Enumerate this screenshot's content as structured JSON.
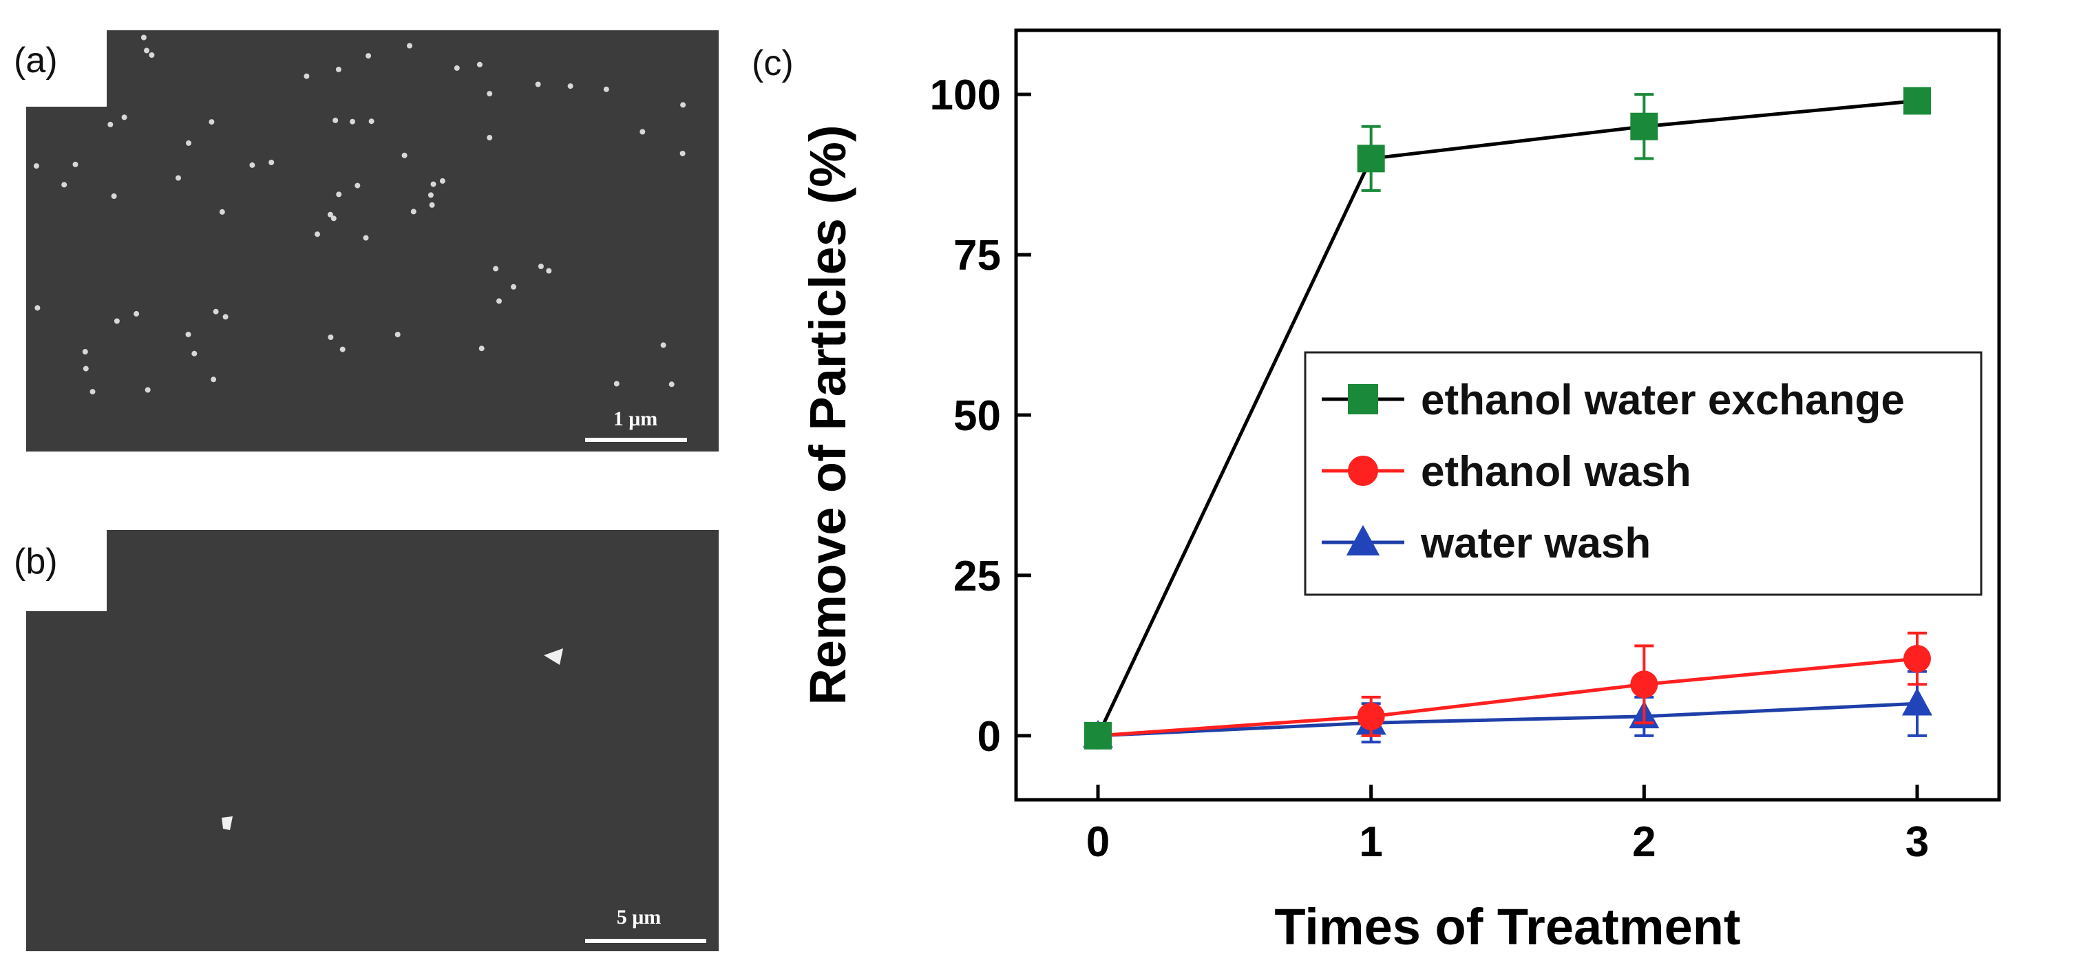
{
  "panels": {
    "a": {
      "label": "(a)",
      "scale_bar": "1 μm"
    },
    "b": {
      "label": "(b)",
      "scale_bar": "5 μm"
    },
    "c": {
      "label": "(c)"
    }
  },
  "chart_data": {
    "type": "line",
    "xlabel": "Times of Treatment",
    "ylabel": "Remove of Particles (%)",
    "x": [
      0,
      1,
      2,
      3
    ],
    "xlim": [
      -0.3,
      3.3
    ],
    "ylim": [
      -10,
      110
    ],
    "xticks": [
      "0",
      "1",
      "2",
      "3"
    ],
    "yticks": [
      "0",
      "25",
      "50",
      "75",
      "100"
    ],
    "ytick_values": [
      0,
      25,
      50,
      75,
      100
    ],
    "legend_position": "center-right",
    "series": [
      {
        "name": "ethanol water exchange",
        "values": [
          0,
          90,
          95,
          99
        ],
        "errors": [
          1,
          5,
          5,
          1
        ],
        "marker": "square",
        "marker_color": "#1a8a3a",
        "line_color": "#000000"
      },
      {
        "name": "ethanol wash",
        "values": [
          0,
          3,
          8,
          12
        ],
        "errors": [
          1,
          3,
          6,
          4
        ],
        "marker": "circle",
        "marker_color": "#ff2020",
        "line_color": "#ff2020"
      },
      {
        "name": "water wash",
        "values": [
          0,
          2,
          3,
          5
        ],
        "errors": [
          1,
          3,
          3,
          5
        ],
        "marker": "triangle",
        "marker_color": "#2244bb",
        "line_color": "#1f3fa8"
      }
    ]
  }
}
